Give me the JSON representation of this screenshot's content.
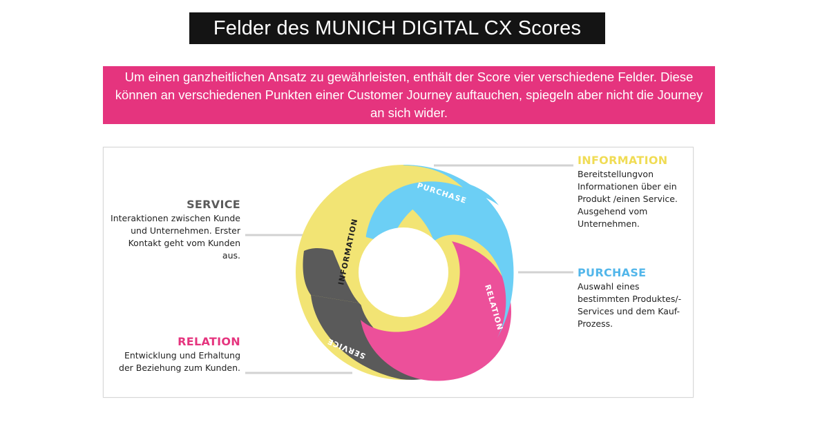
{
  "header": {
    "title": "Felder des MUNICH DIGITAL CX Scores"
  },
  "intro": {
    "text": "Um einen ganzheitlichen Ansatz zu gewährleisten, enthält der Score vier verschiedene Felder. Diese können an verschiedenen Punkten einer Customer Journey auftauchen, spiegeln aber nicht die Journey an sich wider."
  },
  "colors": {
    "accent_pink": "#e5347e",
    "title_bg": "#141414",
    "information": "#f2e474",
    "purchase": "#6ccff5",
    "relation": "#ec509a",
    "service": "#5a5a5a"
  },
  "fields": {
    "service": {
      "heading": "SERVICE",
      "description": "Interaktionen zwischen Kunde und Unternehmen. Erster Kontakt geht vom Kunden aus."
    },
    "relation": {
      "heading": "RELATION",
      "description": "Entwicklung und Erhaltung der Beziehung zum Kunden."
    },
    "information": {
      "heading": "INFORMATION",
      "description": "Bereitstellungvon Informationen über ein Produkt /einen Service. Ausgehend vom Unternehmen."
    },
    "purchase": {
      "heading": "PURCHASE",
      "description": "Auswahl eines bestimmten Produktes/-Services und dem Kauf-Prozess."
    }
  },
  "ring_labels": {
    "information": "INFORMATION",
    "purchase": "PURCHASE",
    "relation": "RELATION",
    "service": "SERVICE"
  }
}
